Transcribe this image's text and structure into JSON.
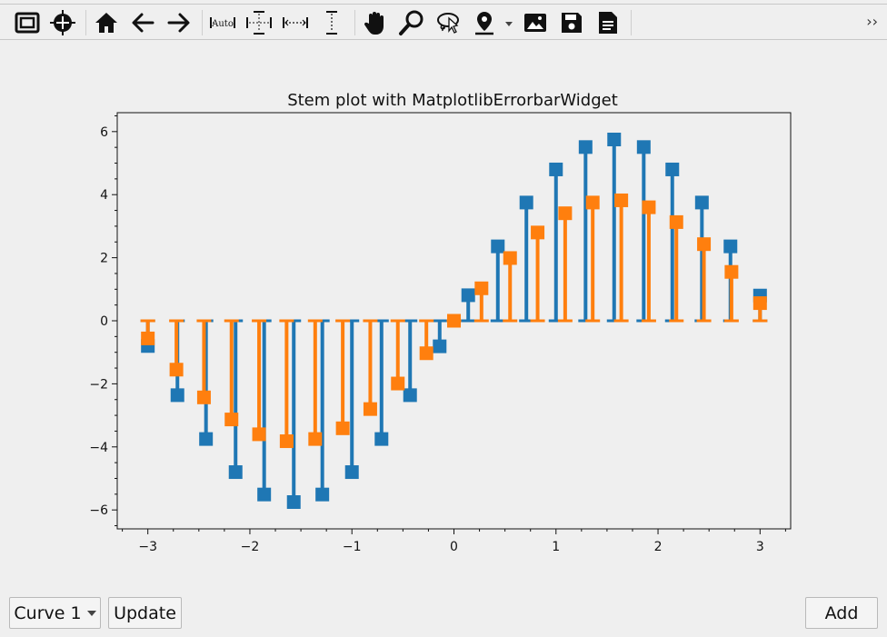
{
  "toolbar": {
    "buttons": [
      {
        "icon": "fit-frame-icon"
      },
      {
        "icon": "crosshair-icon"
      },
      {
        "icon": "home-icon"
      },
      {
        "icon": "back-arrow-icon"
      },
      {
        "icon": "forward-arrow-icon"
      },
      {
        "icon": "autoscale-icon",
        "label": "Auto"
      },
      {
        "icon": "autoscale-xy-icon"
      },
      {
        "icon": "autoscale-x-icon"
      },
      {
        "icon": "autoscale-y-icon"
      },
      {
        "icon": "pan-hand-icon"
      },
      {
        "icon": "zoom-icon"
      },
      {
        "icon": "lasso-icon"
      },
      {
        "icon": "marker-pin-icon"
      },
      {
        "icon": "image-icon"
      },
      {
        "icon": "save-icon"
      },
      {
        "icon": "document-icon"
      }
    ],
    "more": "››"
  },
  "controls": {
    "curve_select": "Curve 1",
    "update_label": "Update",
    "add_label": "Add"
  },
  "chart_data": {
    "type": "stem",
    "title": "Stem plot with MatplotlibErrorbarWidget",
    "xlim": [
      -3.3,
      3.3
    ],
    "ylim": [
      -6.6,
      6.6
    ],
    "xticks": [
      -3,
      -2,
      -1,
      0,
      1,
      2,
      3
    ],
    "xtick_labels": [
      "−3",
      "−2",
      "−1",
      "0",
      "1",
      "2",
      "3"
    ],
    "yticks": [
      -6,
      -4,
      -2,
      0,
      2,
      4,
      6
    ],
    "ytick_labels": [
      "−6",
      "−4",
      "−2",
      "0",
      "2",
      "4",
      "6"
    ],
    "grid": false,
    "series": [
      {
        "color": "#1f77b4",
        "x": [
          -3.0,
          -2.71,
          -2.43,
          -2.14,
          -1.86,
          -1.57,
          -1.29,
          -1.0,
          -0.71,
          -0.43,
          -0.14,
          0.14,
          0.43,
          0.71,
          1.0,
          1.29,
          1.57,
          1.86,
          2.14,
          2.43,
          2.71,
          3.0
        ],
        "y": [
          -0.8,
          -2.36,
          -3.75,
          -4.8,
          -5.51,
          -5.75,
          -5.51,
          -4.8,
          -3.75,
          -2.36,
          -0.81,
          0.81,
          2.36,
          3.75,
          4.8,
          5.51,
          5.75,
          5.51,
          4.8,
          3.75,
          2.36,
          0.8
        ]
      },
      {
        "color": "#ff7f0e",
        "x": [
          -3.0,
          -2.72,
          -2.45,
          -2.18,
          -1.91,
          -1.64,
          -1.36,
          -1.09,
          -0.82,
          -0.55,
          -0.27,
          0.0,
          0.27,
          0.55,
          0.82,
          1.09,
          1.36,
          1.64,
          1.91,
          2.18,
          2.45,
          2.72,
          3.0
        ],
        "y": [
          -0.56,
          -1.55,
          -2.43,
          -3.13,
          -3.6,
          -3.82,
          -3.75,
          -3.41,
          -2.8,
          -1.99,
          -1.03,
          0.0,
          1.03,
          1.99,
          2.8,
          3.41,
          3.75,
          3.82,
          3.6,
          3.13,
          2.43,
          1.55,
          0.56
        ]
      }
    ]
  }
}
